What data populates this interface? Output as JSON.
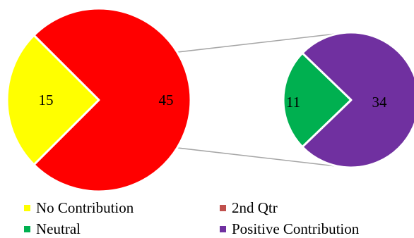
{
  "chart_data": {
    "type": "pie",
    "subtype": "pie-of-pie",
    "main_pie": {
      "slices": [
        {
          "name": "No Contribution",
          "value": 15,
          "color": "#ffff00"
        },
        {
          "name": "2nd Qtr",
          "value": 45,
          "color": "#ff0000"
        }
      ]
    },
    "secondary_pie": {
      "slices": [
        {
          "name": "Neutral",
          "value": 11,
          "color": "#00b050"
        },
        {
          "name": "Positive Contribution",
          "value": 34,
          "color": "#7030a0"
        }
      ]
    },
    "legend": {
      "position": "bottom",
      "entries": [
        {
          "label": "No Contribution",
          "color": "#ffff00"
        },
        {
          "label": "2nd Qtr",
          "color": "#c0504d"
        },
        {
          "label": "Neutral",
          "color": "#00b050"
        },
        {
          "label": "Positive Contribution",
          "color": "#7030a0"
        }
      ]
    },
    "connector_color": "#a6a6a6"
  }
}
